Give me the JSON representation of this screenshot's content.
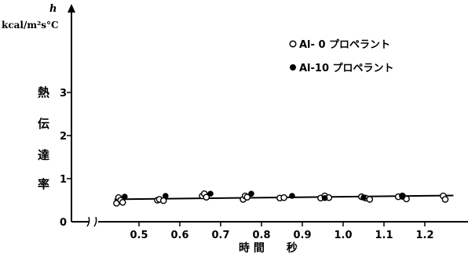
{
  "chart_data": {
    "type": "scatter",
    "y_symbol": "h",
    "y_unit": "kcal/m²s°C",
    "ylabel": [
      "熱",
      "伝",
      "達",
      "率"
    ],
    "xlabel": "時 間　　秒",
    "xlim": [
      0.4,
      1.27
    ],
    "ylim": [
      0,
      5
    ],
    "x_ticks": [
      "0.5",
      "0.6",
      "0.7",
      "0.8",
      "0.9",
      "1.0",
      "1.1",
      "1.2"
    ],
    "y_ticks": [
      "0",
      "1",
      "2",
      "3"
    ],
    "axis_break": true,
    "grid": false,
    "legend_position": "top-right",
    "series": [
      {
        "name": "Al- 0 プロペラント",
        "marker": "open-circle",
        "points": [
          [
            0.445,
            0.43
          ],
          [
            0.45,
            0.56
          ],
          [
            0.455,
            0.5
          ],
          [
            0.46,
            0.45
          ],
          [
            0.545,
            0.5
          ],
          [
            0.55,
            0.52
          ],
          [
            0.56,
            0.49
          ],
          [
            0.655,
            0.6
          ],
          [
            0.66,
            0.65
          ],
          [
            0.665,
            0.57
          ],
          [
            0.755,
            0.52
          ],
          [
            0.76,
            0.6
          ],
          [
            0.765,
            0.57
          ],
          [
            0.845,
            0.55
          ],
          [
            0.855,
            0.56
          ],
          [
            0.945,
            0.55
          ],
          [
            0.955,
            0.6
          ],
          [
            0.965,
            0.56
          ],
          [
            1.045,
            0.58
          ],
          [
            1.055,
            0.55
          ],
          [
            1.065,
            0.52
          ],
          [
            1.135,
            0.58
          ],
          [
            1.145,
            0.6
          ],
          [
            1.155,
            0.53
          ],
          [
            1.245,
            0.6
          ],
          [
            1.25,
            0.52
          ]
        ]
      },
      {
        "name": "Al-10 プロペラント",
        "marker": "filled-circle",
        "points": [
          [
            0.465,
            0.58
          ],
          [
            0.565,
            0.6
          ],
          [
            0.675,
            0.65
          ],
          [
            0.775,
            0.65
          ],
          [
            0.875,
            0.6
          ],
          [
            0.955,
            0.55
          ],
          [
            1.05,
            0.56
          ],
          [
            1.145,
            0.58
          ]
        ]
      }
    ],
    "trend_line": [
      [
        0.44,
        0.52
      ],
      [
        1.27,
        0.61
      ]
    ]
  }
}
